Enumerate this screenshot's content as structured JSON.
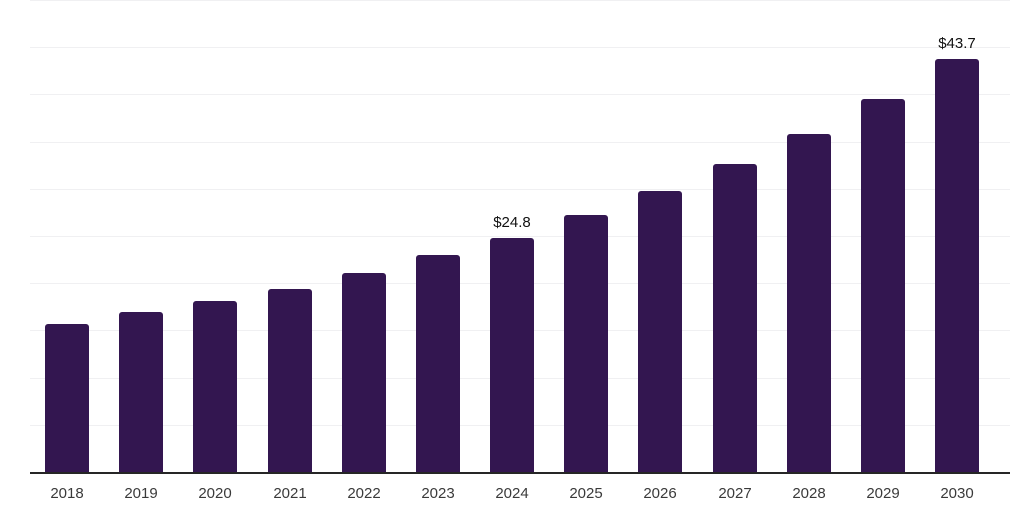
{
  "chart_data": {
    "type": "bar",
    "title": "",
    "xlabel": "",
    "ylabel": "",
    "categories": [
      "2018",
      "2019",
      "2020",
      "2021",
      "2022",
      "2023",
      "2024",
      "2025",
      "2026",
      "2027",
      "2028",
      "2029",
      "2030"
    ],
    "values": [
      15.7,
      16.9,
      18.1,
      19.4,
      21.1,
      23.0,
      24.8,
      27.2,
      29.8,
      32.6,
      35.8,
      39.5,
      43.7
    ],
    "data_labels": {
      "2024": "$24.8",
      "2030": "$43.7"
    },
    "ylim": [
      0,
      50
    ],
    "grid": true,
    "grid_step": 5,
    "legend": false,
    "y_axis_labels": false,
    "colors": {
      "bar": "#331650",
      "gridline": "#f0f0f2",
      "axis_line": "#262626",
      "data_label": "#111111",
      "tick_label": "#3a3a3a"
    }
  }
}
